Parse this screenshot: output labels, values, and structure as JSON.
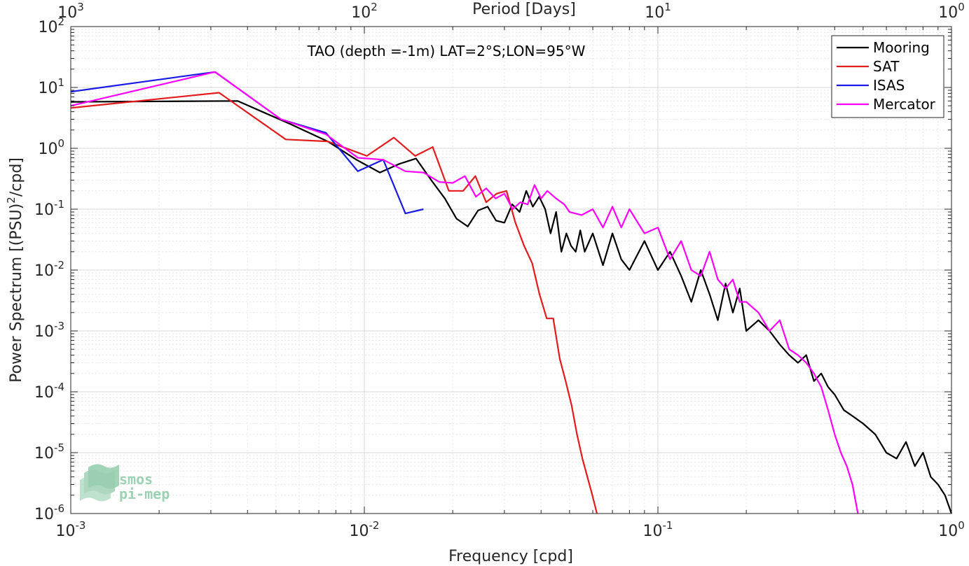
{
  "chart_data": {
    "type": "line",
    "title": "TAO (depth =-1m) LAT=2°S;LON=95°W",
    "xlabel": "Frequency [cpd]",
    "ylabel": "Power Spectrum [(PSU)²/cpd]",
    "ylabel_parts": {
      "main": "Power Spectrum [(PSU)",
      "sup": "2",
      "tail": "/cpd]"
    },
    "x2label": "Period [Days]",
    "xscale": "log",
    "yscale": "log",
    "xlim": [
      0.001,
      1
    ],
    "ylim": [
      1e-06,
      100
    ],
    "grid": true,
    "legend_position": "top-right",
    "x_ticks": [
      0.001,
      0.01,
      0.1,
      1
    ],
    "x_tick_labels": [
      {
        "base": "10",
        "exp": "-3"
      },
      {
        "base": "10",
        "exp": "-2"
      },
      {
        "base": "10",
        "exp": "-1"
      },
      {
        "base": "10",
        "exp": "0"
      }
    ],
    "x2_ticks": [
      0.001,
      0.01,
      0.1,
      1
    ],
    "x2_tick_labels": [
      {
        "base": "10",
        "exp": "3"
      },
      {
        "base": "10",
        "exp": "2"
      },
      {
        "base": "10",
        "exp": "1"
      },
      {
        "base": "10",
        "exp": "0"
      }
    ],
    "y_ticks": [
      1e-06,
      1e-05,
      0.0001,
      0.001,
      0.01,
      0.1,
      1,
      10,
      100
    ],
    "y_tick_labels": [
      {
        "base": "10",
        "exp": "-6"
      },
      {
        "base": "10",
        "exp": "-5"
      },
      {
        "base": "10",
        "exp": "-4"
      },
      {
        "base": "10",
        "exp": "-3"
      },
      {
        "base": "10",
        "exp": "-2"
      },
      {
        "base": "10",
        "exp": "-1"
      },
      {
        "base": "10",
        "exp": "0"
      },
      {
        "base": "10",
        "exp": "1"
      },
      {
        "base": "10",
        "exp": "2"
      }
    ],
    "series": [
      {
        "name": "Mooring",
        "color": "#000000",
        "x": [
          0.001,
          0.0037,
          0.0056,
          0.0075,
          0.0094,
          0.0113,
          0.0131,
          0.015,
          0.0169,
          0.0188,
          0.0206,
          0.0225,
          0.0244,
          0.0263,
          0.0281,
          0.03,
          0.0319,
          0.0338,
          0.0356,
          0.0375,
          0.0394,
          0.0413,
          0.0431,
          0.045,
          0.0469,
          0.0488,
          0.0506,
          0.0525,
          0.0544,
          0.0563,
          0.06,
          0.065,
          0.07,
          0.075,
          0.08,
          0.09,
          0.1,
          0.11,
          0.12,
          0.13,
          0.14,
          0.15,
          0.16,
          0.17,
          0.18,
          0.19,
          0.2,
          0.22,
          0.24,
          0.26,
          0.28,
          0.3,
          0.32,
          0.34,
          0.36,
          0.38,
          0.4,
          0.43,
          0.46,
          0.5,
          0.55,
          0.6,
          0.65,
          0.7,
          0.75,
          0.8,
          0.85,
          0.9,
          0.95,
          1.0
        ],
        "y": [
          5.8,
          6.0,
          2.5,
          1.3,
          0.65,
          0.4,
          0.55,
          0.68,
          0.3,
          0.15,
          0.07,
          0.052,
          0.095,
          0.11,
          0.065,
          0.06,
          0.12,
          0.09,
          0.2,
          0.11,
          0.16,
          0.1,
          0.04,
          0.09,
          0.02,
          0.04,
          0.025,
          0.02,
          0.045,
          0.02,
          0.04,
          0.012,
          0.04,
          0.015,
          0.01,
          0.03,
          0.01,
          0.02,
          0.008,
          0.003,
          0.01,
          0.004,
          0.0015,
          0.006,
          0.002,
          0.005,
          0.001,
          0.0015,
          0.001,
          0.0006,
          0.0004,
          0.0003,
          0.0004,
          0.00015,
          0.0002,
          0.00012,
          9e-05,
          5e-05,
          4e-05,
          3e-05,
          2e-05,
          1e-05,
          8e-06,
          1.5e-05,
          6e-06,
          1e-05,
          4e-06,
          3e-06,
          2e-06,
          1e-06
        ]
      },
      {
        "name": "SAT",
        "color": "#e41a1c",
        "x": [
          0.001,
          0.0032,
          0.0054,
          0.0075,
          0.0102,
          0.0126,
          0.0149,
          0.0171,
          0.0194,
          0.0217,
          0.0239,
          0.026,
          0.0282,
          0.0305,
          0.0327,
          0.035,
          0.0373,
          0.0395,
          0.0418,
          0.044,
          0.0463,
          0.0485,
          0.0508,
          0.053,
          0.0553,
          0.0575,
          0.0598,
          0.062
        ],
        "y": [
          4.6,
          8.2,
          1.4,
          1.3,
          0.75,
          1.5,
          0.75,
          1.05,
          0.2,
          0.2,
          0.35,
          0.13,
          0.18,
          0.2,
          0.06,
          0.025,
          0.013,
          0.004,
          0.0016,
          0.0016,
          0.00035,
          0.00015,
          6e-05,
          2e-05,
          8e-06,
          4e-06,
          2e-06,
          1e-06
        ]
      },
      {
        "name": "ISAS",
        "color": "#1a1ae6",
        "x": [
          0.001,
          0.0031,
          0.0052,
          0.0074,
          0.0095,
          0.0116,
          0.0138,
          0.0159
        ],
        "y": [
          8.5,
          18.0,
          3.0,
          1.8,
          0.42,
          0.65,
          0.085,
          0.1
        ]
      },
      {
        "name": "Mercator",
        "color": "#ff00ff",
        "x": [
          0.001,
          0.0031,
          0.0052,
          0.0074,
          0.0095,
          0.0116,
          0.0138,
          0.0159,
          0.018,
          0.02,
          0.022,
          0.024,
          0.026,
          0.028,
          0.03,
          0.032,
          0.034,
          0.036,
          0.038,
          0.04,
          0.042,
          0.045,
          0.048,
          0.05,
          0.055,
          0.06,
          0.065,
          0.07,
          0.075,
          0.08,
          0.09,
          0.1,
          0.11,
          0.12,
          0.13,
          0.14,
          0.15,
          0.16,
          0.17,
          0.18,
          0.19,
          0.2,
          0.22,
          0.24,
          0.26,
          0.28,
          0.3,
          0.32,
          0.34,
          0.36,
          0.38,
          0.4,
          0.42,
          0.44,
          0.46,
          0.48
        ],
        "y": [
          5.0,
          18.0,
          3.0,
          1.7,
          0.7,
          0.65,
          0.42,
          0.4,
          0.28,
          0.27,
          0.35,
          0.16,
          0.22,
          0.15,
          0.18,
          0.1,
          0.13,
          0.12,
          0.25,
          0.15,
          0.2,
          0.15,
          0.12,
          0.09,
          0.08,
          0.1,
          0.05,
          0.11,
          0.05,
          0.1,
          0.04,
          0.05,
          0.015,
          0.03,
          0.01,
          0.008,
          0.02,
          0.007,
          0.005,
          0.007,
          0.003,
          0.003,
          0.002,
          0.001,
          0.0015,
          0.0005,
          0.0004,
          0.0003,
          0.0002,
          0.00012,
          5e-05,
          2e-05,
          1e-05,
          6e-06,
          3e-06,
          1e-06
        ]
      }
    ],
    "watermark": {
      "line1": "smos",
      "line2": "pi-mep"
    }
  }
}
